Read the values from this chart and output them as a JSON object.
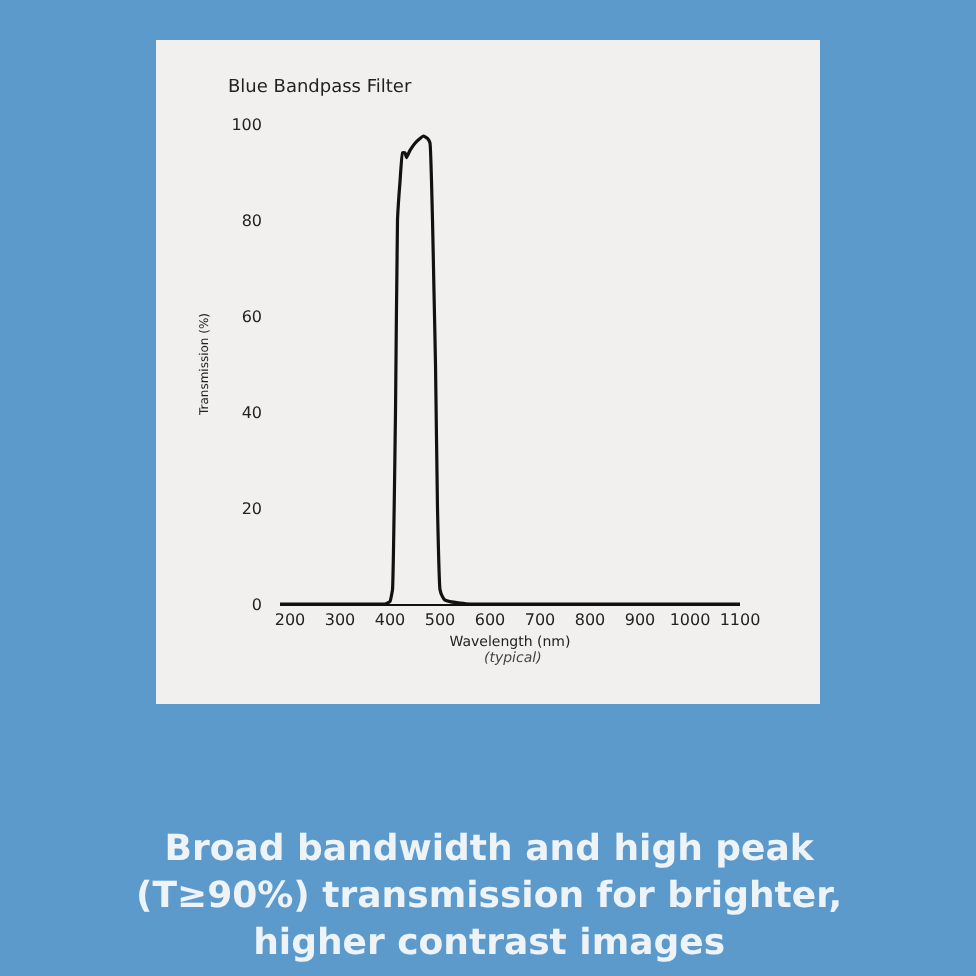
{
  "chart_data": {
    "type": "line",
    "title": "Blue Bandpass Filter",
    "xlabel": "Wavelength (nm)",
    "ylabel": "Transmission (%)",
    "x": [
      180,
      300,
      390,
      400,
      405,
      411,
      415,
      420,
      425,
      430,
      433,
      440,
      450,
      460,
      467,
      475,
      480,
      485,
      488,
      491,
      495,
      500,
      505,
      510,
      520,
      540,
      560,
      700,
      900,
      1100
    ],
    "series": [
      {
        "color": "#111111",
        "values": [
          0,
          0,
          0,
          0.5,
          3,
          40,
          80,
          88,
          94,
          94,
          93,
          94.5,
          96,
          97,
          97.5,
          97,
          96,
          80,
          65,
          50,
          20,
          3,
          1.5,
          0.8,
          0.5,
          0.2,
          0,
          0,
          0,
          0
        ]
      }
    ],
    "xlim": [
      180,
      1100
    ],
    "xticks": [
      200,
      300,
      400,
      500,
      600,
      700,
      800,
      900,
      1000,
      1100
    ],
    "ylim": [
      0,
      100
    ],
    "yticks": [
      0,
      20,
      40,
      60,
      80,
      100
    ],
    "grid": false,
    "marker": "none",
    "line_style": "solid",
    "annotations": [
      "(typical)",
      "Broad bandwidth and high peak\n(T≥90%) transmission for brighter,\nhigher contrast images"
    ]
  }
}
